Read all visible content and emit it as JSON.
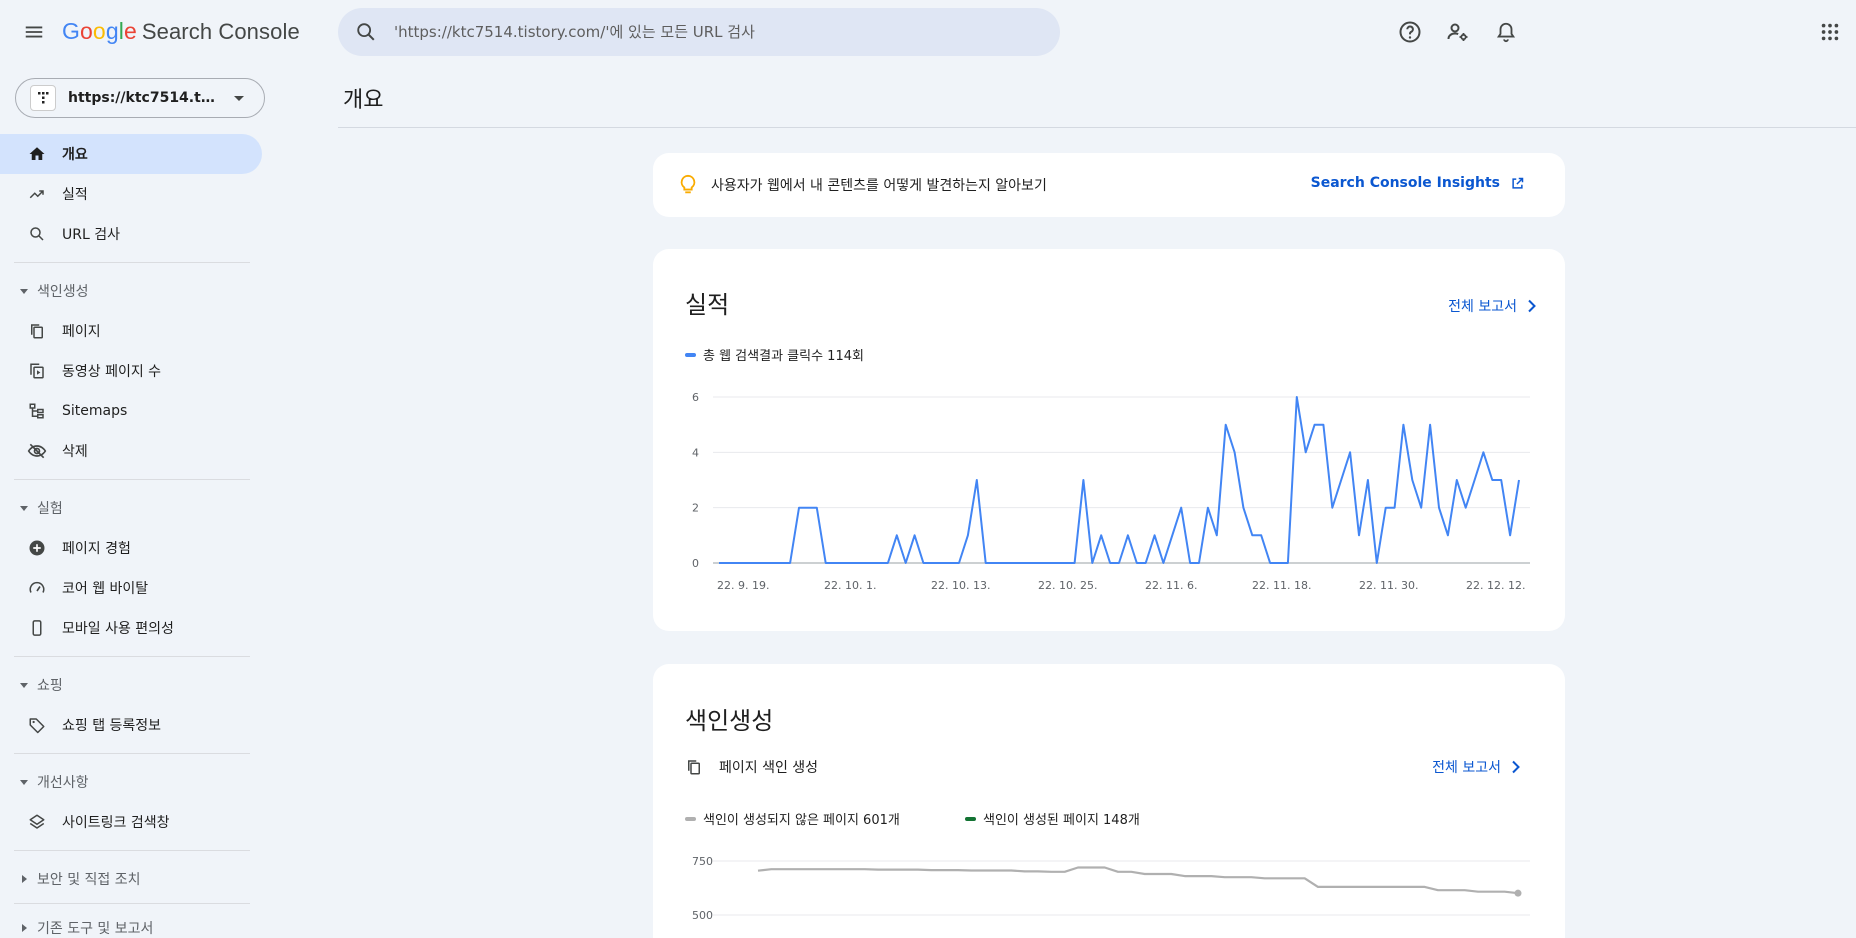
{
  "header": {
    "brand_google": [
      "G",
      "o",
      "o",
      "g",
      "l",
      "e"
    ],
    "brand_product": "Search Console",
    "search_placeholder": "'https://ktc7514.tistory.com/'에 있는 모든 URL 검사",
    "icons": [
      "help-icon",
      "manage-users-icon",
      "notifications-icon",
      "apps-grid-icon"
    ]
  },
  "property": {
    "label": "https://ktc7514.tisto..."
  },
  "sidebar": {
    "items": [
      {
        "label": "개요",
        "icon": "home-icon",
        "active": true
      },
      {
        "label": "실적",
        "icon": "trending-up-icon"
      },
      {
        "label": "URL 검사",
        "icon": "search-icon"
      }
    ],
    "sections": [
      {
        "title": "색인생성",
        "expanded": true,
        "items": [
          {
            "label": "페이지",
            "icon": "pages-icon"
          },
          {
            "label": "동영상 페이지 수",
            "icon": "video-pages-icon"
          },
          {
            "label": "Sitemaps",
            "icon": "sitemap-icon"
          },
          {
            "label": "삭제",
            "icon": "visibility-off-icon"
          }
        ]
      },
      {
        "title": "실험",
        "expanded": true,
        "items": [
          {
            "label": "페이지 경험",
            "icon": "add-circle-icon"
          },
          {
            "label": "코어 웹 바이탈",
            "icon": "speed-icon"
          },
          {
            "label": "모바일 사용 편의성",
            "icon": "smartphone-icon"
          }
        ]
      },
      {
        "title": "쇼핑",
        "expanded": true,
        "items": [
          {
            "label": "쇼핑 탭 등록정보",
            "icon": "tag-icon"
          }
        ]
      },
      {
        "title": "개선사항",
        "expanded": true,
        "items": [
          {
            "label": "사이트링크 검색창",
            "icon": "layers-icon"
          }
        ]
      },
      {
        "title": "보안 및 직접 조치",
        "expanded": false,
        "items": []
      },
      {
        "title": "기존 도구 및 보고서",
        "expanded": false,
        "items": []
      }
    ]
  },
  "main": {
    "page_title": "개요",
    "insights": {
      "text": "사용자가 웹에서 내 콘텐츠를 어떻게 발견하는지 알아보기",
      "link": "Search Console Insights"
    },
    "performance": {
      "title": "실적",
      "report_link": "전체 보고서",
      "legend": "총 웹 검색결과 클릭수 114회"
    },
    "indexing": {
      "title": "색인생성",
      "subtitle": "페이지 색인 생성",
      "report_link": "전체 보고서",
      "legend_not_indexed": "색인이 생성되지 않은 페이지 601개",
      "legend_indexed": "색인이 생성된 페이지 148개"
    }
  },
  "colors": {
    "accent": "#0b57d0",
    "clicks_line": "#4285f4",
    "not_indexed_line": "#b0b0b0",
    "indexed_line": "#137333",
    "active_nav": "#d3e3fd"
  },
  "chart_data": [
    {
      "type": "line",
      "x_tick_labels": [
        "22. 9. 19.",
        "22. 10. 1.",
        "22. 10. 13.",
        "22. 10. 25.",
        "22. 11. 6.",
        "22. 11. 18.",
        "22. 11. 30.",
        "22. 12. 12."
      ],
      "y_ticks": [
        0,
        2,
        4,
        6
      ],
      "ylim": [
        0,
        6
      ],
      "grid": true,
      "series": [
        {
          "name": "총 웹 검색결과 클릭수 114회",
          "values": [
            0,
            0,
            0,
            0,
            0,
            0,
            0,
            0,
            0,
            2,
            2,
            2,
            0,
            0,
            0,
            0,
            0,
            0,
            0,
            0,
            1,
            0,
            1,
            0,
            0,
            0,
            0,
            0,
            1,
            3,
            0,
            0,
            0,
            0,
            0,
            0,
            0,
            0,
            0,
            0,
            0,
            3,
            0,
            1,
            0,
            0,
            1,
            0,
            0,
            1,
            0,
            1,
            2,
            0,
            0,
            2,
            1,
            5,
            4,
            2,
            1,
            1,
            0,
            0,
            0,
            6,
            4,
            5,
            5,
            2,
            3,
            4,
            1,
            3,
            0,
            2,
            2,
            5,
            3,
            2,
            5,
            2,
            1,
            3,
            2,
            3,
            4,
            3,
            3,
            1,
            3
          ]
        }
      ]
    },
    {
      "type": "line",
      "y_ticks": [
        500,
        750
      ],
      "grid": true,
      "series": [
        {
          "name": "색인이 생성되지 않은 페이지 601개",
          "values": [
            705,
            712,
            712,
            712,
            712,
            712,
            712,
            712,
            712,
            710,
            710,
            710,
            710,
            708,
            708,
            708,
            706,
            706,
            706,
            706,
            702,
            702,
            700,
            700,
            720,
            720,
            720,
            700,
            700,
            690,
            690,
            690,
            680,
            680,
            680,
            675,
            675,
            675,
            670,
            670,
            670,
            670,
            630,
            630,
            630,
            630,
            630,
            630,
            630,
            630,
            630,
            615,
            615,
            615,
            608,
            608,
            608,
            601
          ]
        },
        {
          "name": "색인이 생성된 페이지 148개",
          "values": []
        }
      ]
    }
  ]
}
